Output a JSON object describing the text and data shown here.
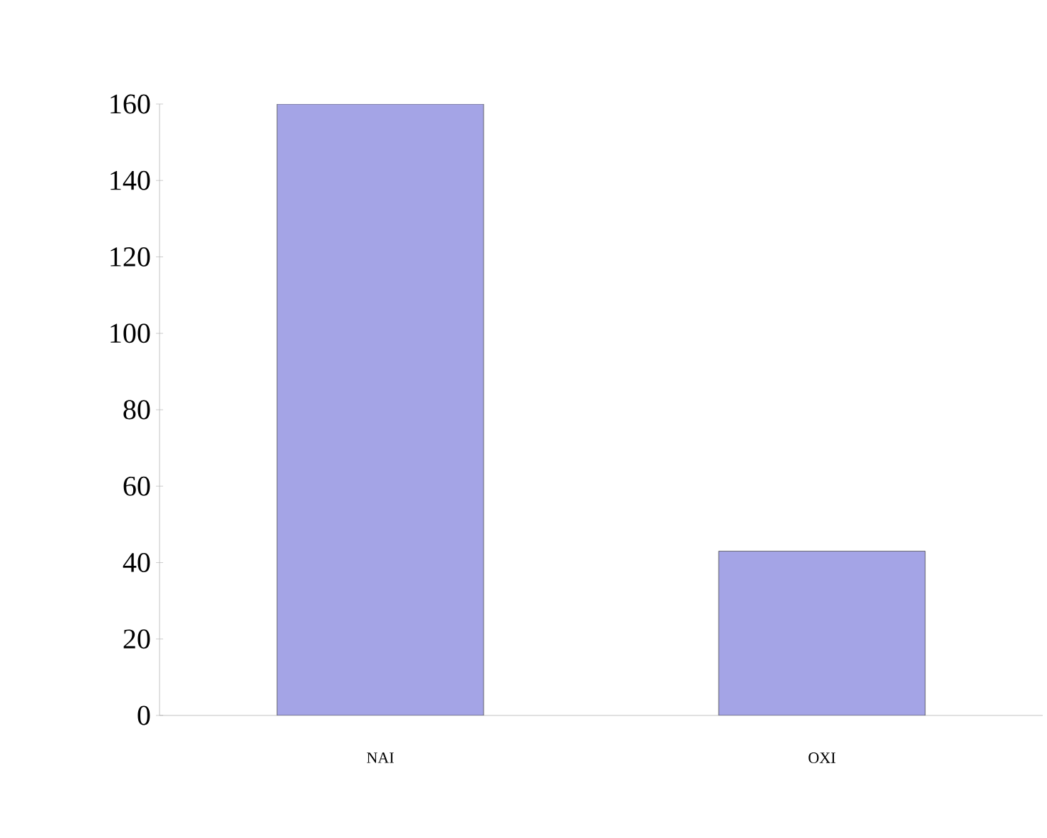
{
  "chart_data": {
    "type": "bar",
    "categories": [
      "NAI",
      "OXI"
    ],
    "values": [
      160,
      43
    ],
    "color": "#a4a4e6",
    "ylim": [
      0,
      160
    ],
    "yticks": [
      0,
      20,
      40,
      60,
      80,
      100,
      120,
      140,
      160
    ],
    "grid": false
  }
}
